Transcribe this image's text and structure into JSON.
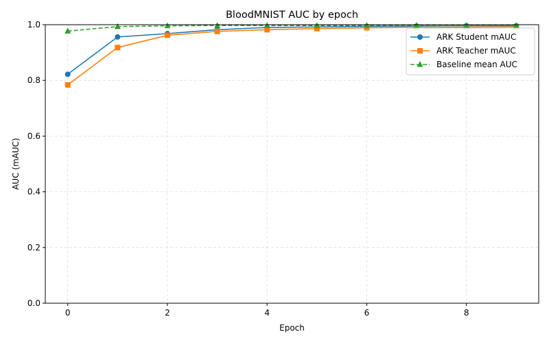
{
  "chart_data": {
    "type": "line",
    "title": "BloodMNIST AUC by epoch",
    "xlabel": "Epoch",
    "ylabel": "AUC (mAUC)",
    "xlim": [
      -0.45,
      9.45
    ],
    "ylim": [
      0.0,
      1.0
    ],
    "xticks": [
      0,
      2,
      4,
      6,
      8
    ],
    "yticks": [
      0.0,
      0.2,
      0.4,
      0.6,
      0.8,
      1.0
    ],
    "xtick_labels": [
      "0",
      "2",
      "4",
      "6",
      "8"
    ],
    "ytick_labels": [
      "0.0",
      "0.2",
      "0.4",
      "0.6",
      "0.8",
      "1.0"
    ],
    "grid": true,
    "legend_position": "top-right",
    "x": [
      0,
      1,
      2,
      3,
      4,
      5,
      6,
      7,
      8,
      9
    ],
    "series": [
      {
        "name": "ARK Student mAUC",
        "color": "#1f77b4",
        "marker": "circle",
        "linestyle": "solid",
        "values": [
          0.822,
          0.956,
          0.968,
          0.982,
          0.99,
          0.992,
          0.994,
          0.995,
          0.996,
          0.996
        ]
      },
      {
        "name": "ARK Teacher mAUC",
        "color": "#ff7f0e",
        "marker": "square",
        "linestyle": "solid",
        "values": [
          0.784,
          0.918,
          0.962,
          0.976,
          0.982,
          0.986,
          0.989,
          0.99,
          0.991,
          0.992
        ]
      },
      {
        "name": "Baseline mean AUC",
        "color": "#2ca02c",
        "marker": "triangle",
        "linestyle": "dashed",
        "values": [
          0.977,
          0.993,
          0.996,
          0.997,
          0.997,
          0.997,
          0.997,
          0.997,
          0.997,
          0.997
        ]
      }
    ]
  }
}
